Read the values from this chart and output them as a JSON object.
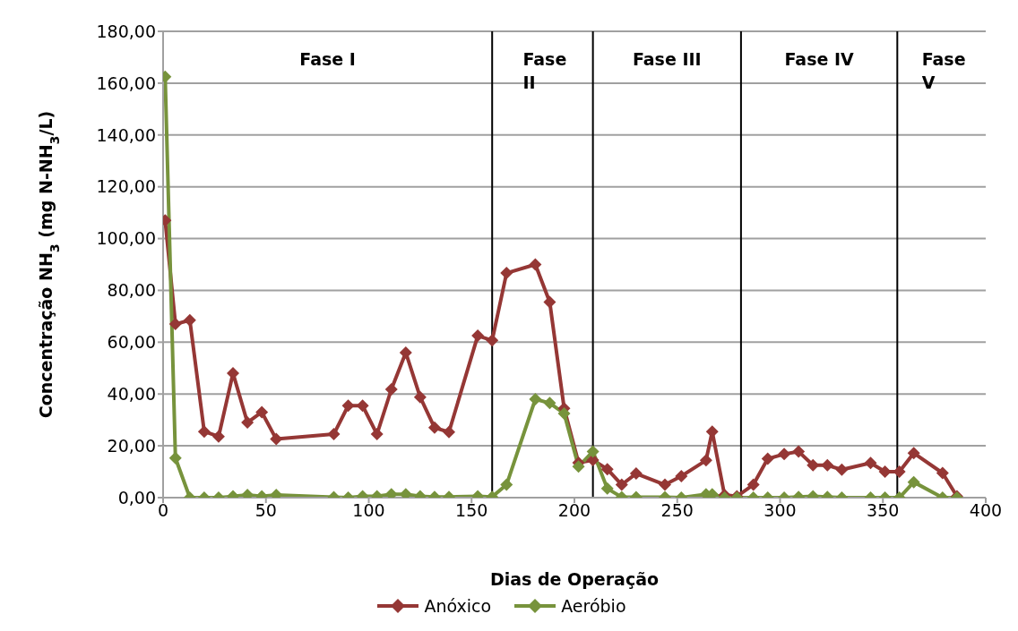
{
  "chart_data": {
    "type": "line",
    "xlabel": "Dias de Operação",
    "ylabel": "Concentração NH$_{3}$ (mg N-NH$_{3}$/L)",
    "x": [
      1,
      6,
      13,
      20,
      27,
      34,
      41,
      48,
      55,
      83,
      90,
      97,
      104,
      111,
      118,
      125,
      132,
      139,
      153,
      160,
      167,
      181,
      188,
      195,
      202,
      209,
      216,
      223,
      230,
      244,
      252,
      264,
      267,
      273,
      279,
      287,
      294,
      302,
      309,
      316,
      323,
      330,
      344,
      351,
      358,
      365,
      379,
      386
    ],
    "series": [
      {
        "name": "Anóxico",
        "color": "#953735",
        "values": [
          107,
          67,
          68.5,
          25.5,
          23.6,
          48,
          29,
          33,
          22.6,
          24.5,
          35.5,
          35.5,
          24.5,
          41.8,
          56,
          38.8,
          27,
          25.3,
          62.5,
          60.7,
          86.7,
          90,
          75.5,
          34.5,
          13.5,
          14.5,
          11,
          5,
          9.3,
          5,
          8.3,
          14.4,
          25.5,
          1,
          0.5,
          5,
          15,
          16.8,
          17.8,
          12.5,
          12.5,
          10.8,
          13.4,
          10,
          10,
          17.2,
          9.5,
          0.5
        ]
      },
      {
        "name": "Aeróbio",
        "color": "#77933c",
        "values": [
          162.5,
          15.3,
          0,
          0,
          0,
          0.5,
          1,
          0.5,
          1,
          0.2,
          0,
          0.5,
          0.5,
          1.3,
          1.3,
          0.5,
          0.3,
          0.3,
          0.5,
          0.3,
          5,
          38,
          36.5,
          32.5,
          12,
          17.8,
          3.5,
          0.2,
          0.2,
          0.2,
          0,
          1.3,
          1.3,
          0,
          0,
          0,
          0,
          0,
          0.3,
          0.5,
          0.3,
          0,
          0,
          0,
          0,
          6,
          0,
          0
        ]
      }
    ],
    "xlim": [
      0,
      400
    ],
    "xticks": [
      0,
      50,
      100,
      150,
      200,
      250,
      300,
      350,
      400
    ],
    "ylim": [
      0,
      180
    ],
    "yticks": [
      {
        "value": 0,
        "label": "0,00"
      },
      {
        "value": 20,
        "label": "20,00"
      },
      {
        "value": 40,
        "label": "40,00"
      },
      {
        "value": 60,
        "label": "60,00"
      },
      {
        "value": 80,
        "label": "80,00"
      },
      {
        "value": 100,
        "label": "100,00"
      },
      {
        "value": 120,
        "label": "120,00"
      },
      {
        "value": 140,
        "label": "140,00"
      },
      {
        "value": 160,
        "label": "160,00"
      },
      {
        "value": 180,
        "label": "180,00"
      }
    ],
    "ref_lines": [
      {
        "axis": "x",
        "value": 160,
        "color": "#000000"
      },
      {
        "axis": "x",
        "value": 209,
        "color": "#000000"
      },
      {
        "axis": "x",
        "value": 281,
        "color": "#000000"
      },
      {
        "axis": "x",
        "value": 357,
        "color": "#000000"
      }
    ],
    "annotations": [
      "Fase I",
      "Fase II",
      "Fase III",
      "Fase IV",
      "Fase V"
    ],
    "grid": "y",
    "legend": "bottom",
    "marker": "diamond",
    "line_style": "solid"
  }
}
